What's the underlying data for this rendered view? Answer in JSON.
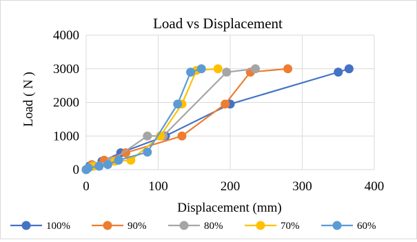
{
  "chart_data": {
    "type": "line",
    "title": "Load vs Displacement",
    "xlabel": "Displacement (mm)",
    "ylabel": "Load ( N )",
    "xlim": [
      0,
      400
    ],
    "ylim": [
      0,
      4000
    ],
    "xticks": [
      "0",
      "100",
      "200",
      "300",
      "400"
    ],
    "yticks": [
      "0",
      "1000",
      "2000",
      "3000",
      "4000"
    ],
    "grid": true,
    "legend_position": "bottom",
    "series": [
      {
        "name": "100%",
        "color": "#4472c4",
        "x": [
          0,
          5,
          22,
          48,
          110,
          200,
          350,
          365
        ],
        "y": [
          0,
          110,
          250,
          500,
          1000,
          1950,
          2900,
          3000
        ]
      },
      {
        "name": "90%",
        "color": "#ed7d31",
        "x": [
          0,
          8,
          25,
          55,
          133,
          193,
          228,
          280
        ],
        "y": [
          0,
          150,
          280,
          500,
          1000,
          1950,
          2900,
          3000
        ]
      },
      {
        "name": "80%",
        "color": "#a5a5a5",
        "x": [
          0,
          10,
          35,
          85,
          107,
          195,
          235
        ],
        "y": [
          0,
          120,
          260,
          1000,
          1000,
          2900,
          3000
        ]
      },
      {
        "name": "70%",
        "color": "#ffc000",
        "x": [
          0,
          10,
          40,
          62,
          103,
          133,
          153,
          183
        ],
        "y": [
          0,
          100,
          250,
          280,
          1000,
          1950,
          2950,
          3000
        ]
      },
      {
        "name": "60%",
        "color": "#5b9bd5",
        "x": [
          0,
          3,
          18,
          30,
          45,
          85,
          127,
          145,
          160
        ],
        "y": [
          0,
          50,
          100,
          150,
          280,
          520,
          1950,
          2900,
          3000
        ]
      }
    ]
  }
}
